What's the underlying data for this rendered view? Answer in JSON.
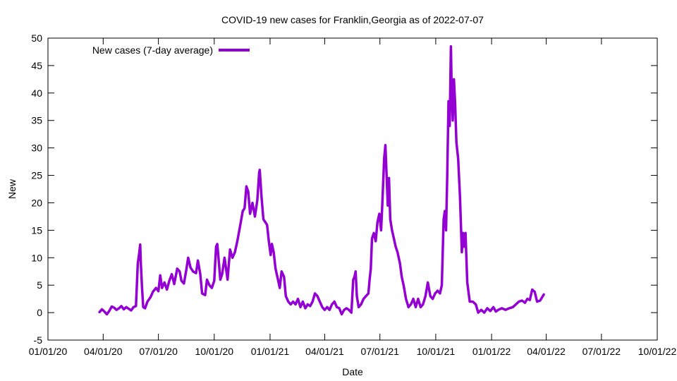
{
  "chart_data": {
    "type": "line",
    "title": "COVID-19 new cases for Franklin,Georgia as of 2022-07-07",
    "xlabel": "Date",
    "ylabel": "New",
    "xlim": [
      "2020-01-01",
      "2022-10-01"
    ],
    "ylim": [
      -5,
      50
    ],
    "grid": false,
    "legend_position": "top-left",
    "x_ticks": [
      "01/01/20",
      "04/01/20",
      "07/01/20",
      "10/01/20",
      "01/01/21",
      "04/01/21",
      "07/01/21",
      "10/01/21",
      "01/01/22",
      "04/01/22",
      "07/01/22",
      "10/01/22"
    ],
    "y_ticks": [
      -5,
      0,
      5,
      10,
      15,
      20,
      25,
      30,
      35,
      40,
      45,
      50
    ],
    "series": [
      {
        "name": "New cases (7-day average)",
        "color": "#9400d3",
        "points": [
          [
            "2020-03-26",
            0.1
          ],
          [
            "2020-03-30",
            0.6
          ],
          [
            "2020-04-03",
            0.2
          ],
          [
            "2020-04-07",
            -0.3
          ],
          [
            "2020-04-11",
            0.3
          ],
          [
            "2020-04-15",
            1.1
          ],
          [
            "2020-04-19",
            0.9
          ],
          [
            "2020-04-23",
            0.5
          ],
          [
            "2020-04-27",
            0.8
          ],
          [
            "2020-05-01",
            1.2
          ],
          [
            "2020-05-05",
            0.6
          ],
          [
            "2020-05-09",
            1.0
          ],
          [
            "2020-05-13",
            0.7
          ],
          [
            "2020-05-17",
            0.4
          ],
          [
            "2020-05-21",
            1.0
          ],
          [
            "2020-05-25",
            1.2
          ],
          [
            "2020-05-28",
            9.0
          ],
          [
            "2020-05-30",
            10.5
          ],
          [
            "2020-06-01",
            12.4
          ],
          [
            "2020-06-02",
            9.0
          ],
          [
            "2020-06-04",
            4.5
          ],
          [
            "2020-06-06",
            1.0
          ],
          [
            "2020-06-09",
            0.8
          ],
          [
            "2020-06-13",
            2.0
          ],
          [
            "2020-06-18",
            2.8
          ],
          [
            "2020-06-22",
            3.8
          ],
          [
            "2020-06-27",
            4.5
          ],
          [
            "2020-07-01",
            3.9
          ],
          [
            "2020-07-04",
            6.8
          ],
          [
            "2020-07-07",
            4.5
          ],
          [
            "2020-07-11",
            5.5
          ],
          [
            "2020-07-15",
            4.2
          ],
          [
            "2020-07-19",
            5.8
          ],
          [
            "2020-07-23",
            7.0
          ],
          [
            "2020-07-27",
            5.2
          ],
          [
            "2020-08-01",
            8.0
          ],
          [
            "2020-08-05",
            7.5
          ],
          [
            "2020-08-08",
            5.8
          ],
          [
            "2020-08-12",
            5.3
          ],
          [
            "2020-08-16",
            7.8
          ],
          [
            "2020-08-19",
            10.0
          ],
          [
            "2020-08-23",
            8.2
          ],
          [
            "2020-08-27",
            7.5
          ],
          [
            "2020-09-01",
            7.2
          ],
          [
            "2020-09-04",
            9.5
          ],
          [
            "2020-09-08",
            7.0
          ],
          [
            "2020-09-11",
            3.5
          ],
          [
            "2020-09-16",
            3.2
          ],
          [
            "2020-09-19",
            6.0
          ],
          [
            "2020-09-23",
            5.0
          ],
          [
            "2020-09-27",
            4.5
          ],
          [
            "2020-10-01",
            5.8
          ],
          [
            "2020-10-04",
            12.0
          ],
          [
            "2020-10-06",
            12.5
          ],
          [
            "2020-10-08",
            10.0
          ],
          [
            "2020-10-11",
            6.0
          ],
          [
            "2020-10-14",
            7.0
          ],
          [
            "2020-10-18",
            10.0
          ],
          [
            "2020-10-23",
            6.0
          ],
          [
            "2020-10-27",
            11.5
          ],
          [
            "2020-10-31",
            10.0
          ],
          [
            "2020-11-04",
            11.0
          ],
          [
            "2020-11-08",
            13.0
          ],
          [
            "2020-11-13",
            16.0
          ],
          [
            "2020-11-17",
            18.5
          ],
          [
            "2020-11-20",
            19.0
          ],
          [
            "2020-11-23",
            23.0
          ],
          [
            "2020-11-26",
            22.0
          ],
          [
            "2020-11-29",
            18.0
          ],
          [
            "2020-12-03",
            20.0
          ],
          [
            "2020-12-07",
            17.5
          ],
          [
            "2020-12-11",
            20.5
          ],
          [
            "2020-12-14",
            25.5
          ],
          [
            "2020-12-15",
            26.0
          ],
          [
            "2020-12-18",
            21.0
          ],
          [
            "2020-12-21",
            17.0
          ],
          [
            "2020-12-24",
            16.5
          ],
          [
            "2020-12-27",
            16.0
          ],
          [
            "2020-12-30",
            13.0
          ],
          [
            "2021-01-02",
            10.5
          ],
          [
            "2021-01-04",
            12.5
          ],
          [
            "2021-01-07",
            11.0
          ],
          [
            "2021-01-10",
            8.0
          ],
          [
            "2021-01-14",
            6.0
          ],
          [
            "2021-01-17",
            4.5
          ],
          [
            "2021-01-20",
            7.5
          ],
          [
            "2021-01-24",
            6.5
          ],
          [
            "2021-01-27",
            3.0
          ],
          [
            "2021-01-31",
            2.0
          ],
          [
            "2021-02-04",
            1.5
          ],
          [
            "2021-02-08",
            2.0
          ],
          [
            "2021-02-12",
            1.5
          ],
          [
            "2021-02-16",
            2.5
          ],
          [
            "2021-02-20",
            1.0
          ],
          [
            "2021-02-24",
            2.0
          ],
          [
            "2021-02-28",
            0.8
          ],
          [
            "2021-03-04",
            1.5
          ],
          [
            "2021-03-08",
            1.2
          ],
          [
            "2021-03-12",
            2.0
          ],
          [
            "2021-03-16",
            3.5
          ],
          [
            "2021-03-20",
            3.0
          ],
          [
            "2021-03-24",
            2.0
          ],
          [
            "2021-03-28",
            1.0
          ],
          [
            "2021-04-01",
            0.5
          ],
          [
            "2021-04-05",
            1.0
          ],
          [
            "2021-04-09",
            0.5
          ],
          [
            "2021-04-13",
            1.5
          ],
          [
            "2021-04-17",
            2.0
          ],
          [
            "2021-04-21",
            1.0
          ],
          [
            "2021-04-25",
            0.8
          ],
          [
            "2021-04-29",
            -0.3
          ],
          [
            "2021-05-03",
            0.5
          ],
          [
            "2021-05-07",
            0.8
          ],
          [
            "2021-05-11",
            0.5
          ],
          [
            "2021-05-15",
            0.0
          ],
          [
            "2021-05-18",
            6.0
          ],
          [
            "2021-05-20",
            6.5
          ],
          [
            "2021-05-22",
            7.5
          ],
          [
            "2021-05-24",
            3.0
          ],
          [
            "2021-05-27",
            1.0
          ],
          [
            "2021-05-31",
            1.5
          ],
          [
            "2021-06-04",
            2.5
          ],
          [
            "2021-06-08",
            3.0
          ],
          [
            "2021-06-12",
            3.5
          ],
          [
            "2021-06-14",
            6.0
          ],
          [
            "2021-06-16",
            8.0
          ],
          [
            "2021-06-18",
            13.5
          ],
          [
            "2021-06-21",
            14.5
          ],
          [
            "2021-06-24",
            13.0
          ],
          [
            "2021-06-27",
            16.5
          ],
          [
            "2021-06-30",
            18.0
          ],
          [
            "2021-07-03",
            15.0
          ],
          [
            "2021-07-05",
            20.0
          ],
          [
            "2021-07-08",
            28.0
          ],
          [
            "2021-07-10",
            30.5
          ],
          [
            "2021-07-12",
            25.0
          ],
          [
            "2021-07-14",
            19.5
          ],
          [
            "2021-07-16",
            24.5
          ],
          [
            "2021-07-18",
            17.0
          ],
          [
            "2021-07-21",
            15.0
          ],
          [
            "2021-07-24",
            13.5
          ],
          [
            "2021-07-27",
            12.0
          ],
          [
            "2021-07-30",
            11.0
          ],
          [
            "2021-08-03",
            9.0
          ],
          [
            "2021-08-06",
            6.5
          ],
          [
            "2021-08-09",
            5.0
          ],
          [
            "2021-08-13",
            2.5
          ],
          [
            "2021-08-17",
            1.0
          ],
          [
            "2021-08-21",
            1.5
          ],
          [
            "2021-08-25",
            2.5
          ],
          [
            "2021-08-29",
            1.0
          ],
          [
            "2021-09-02",
            2.5
          ],
          [
            "2021-09-06",
            1.0
          ],
          [
            "2021-09-10",
            1.5
          ],
          [
            "2021-09-14",
            3.0
          ],
          [
            "2021-09-18",
            5.5
          ],
          [
            "2021-09-22",
            3.0
          ],
          [
            "2021-09-26",
            2.5
          ],
          [
            "2021-09-30",
            3.5
          ],
          [
            "2021-10-04",
            4.0
          ],
          [
            "2021-10-08",
            3.5
          ],
          [
            "2021-10-11",
            5.0
          ],
          [
            "2021-10-14",
            17.0
          ],
          [
            "2021-10-16",
            18.5
          ],
          [
            "2021-10-18",
            15.0
          ],
          [
            "2021-10-20",
            25.0
          ],
          [
            "2021-10-22",
            38.5
          ],
          [
            "2021-10-24",
            34.0
          ],
          [
            "2021-10-26",
            48.5
          ],
          [
            "2021-10-27",
            42.0
          ],
          [
            "2021-10-29",
            35.0
          ],
          [
            "2021-10-31",
            42.5
          ],
          [
            "2021-11-02",
            38.0
          ],
          [
            "2021-11-04",
            31.0
          ],
          [
            "2021-11-07",
            28.0
          ],
          [
            "2021-11-10",
            21.0
          ],
          [
            "2021-11-13",
            11.0
          ],
          [
            "2021-11-15",
            14.5
          ],
          [
            "2021-11-17",
            12.0
          ],
          [
            "2021-11-19",
            14.5
          ],
          [
            "2021-11-22",
            5.5
          ],
          [
            "2021-11-26",
            2.0
          ],
          [
            "2021-12-01",
            2.0
          ],
          [
            "2021-12-06",
            1.5
          ],
          [
            "2021-12-10",
            0.0
          ],
          [
            "2021-12-15",
            0.5
          ],
          [
            "2021-12-20",
            0.0
          ],
          [
            "2021-12-25",
            0.8
          ],
          [
            "2021-12-30",
            0.3
          ],
          [
            "2022-01-04",
            1.0
          ],
          [
            "2022-01-08",
            0.2
          ],
          [
            "2022-01-12",
            0.5
          ],
          [
            "2022-01-18",
            0.8
          ],
          [
            "2022-01-24",
            0.5
          ],
          [
            "2022-01-30",
            0.8
          ],
          [
            "2022-02-05",
            1.0
          ],
          [
            "2022-02-10",
            1.5
          ],
          [
            "2022-02-15",
            2.0
          ],
          [
            "2022-02-20",
            2.2
          ],
          [
            "2022-02-25",
            1.8
          ],
          [
            "2022-03-01",
            2.5
          ],
          [
            "2022-03-05",
            2.3
          ],
          [
            "2022-03-09",
            4.2
          ],
          [
            "2022-03-13",
            3.8
          ],
          [
            "2022-03-17",
            2.0
          ],
          [
            "2022-03-22",
            2.2
          ],
          [
            "2022-03-28",
            3.3
          ]
        ]
      }
    ]
  }
}
